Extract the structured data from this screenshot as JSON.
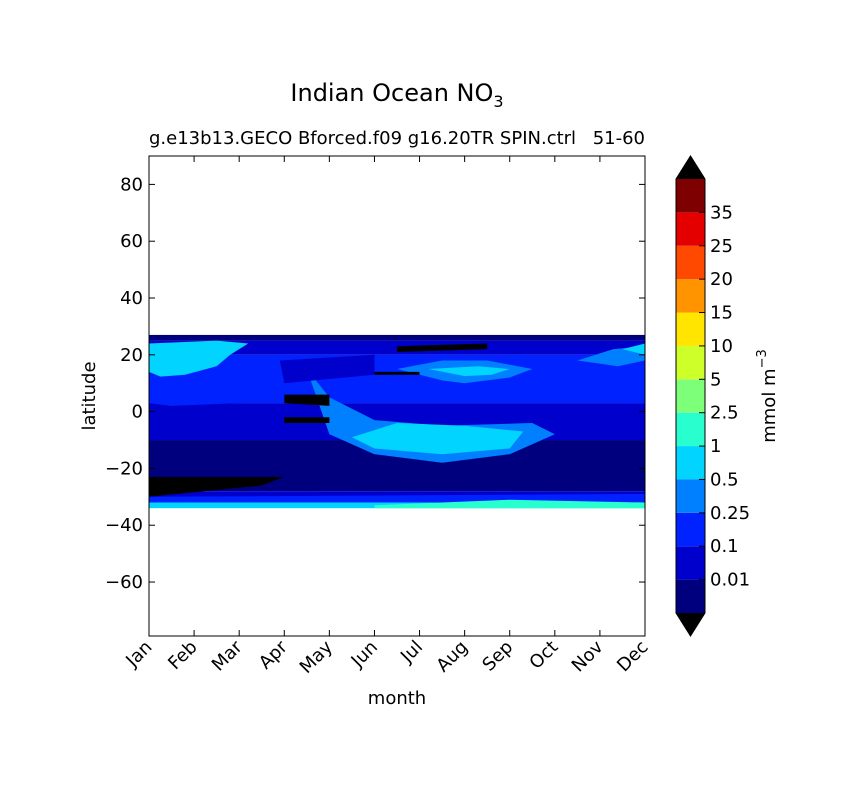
{
  "chart_data": {
    "type": "heatmap",
    "title": "Indian Ocean NO",
    "title_subscript": "3",
    "subtitle_left": "g.e13b13.GECO Bforced.f09 g16.20TR SPIN.ctrl",
    "subtitle_right": "51-60",
    "xlabel": "month",
    "ylabel": "latitude",
    "x_categories": [
      "Jan",
      "Feb",
      "Mar",
      "Apr",
      "May",
      "Jun",
      "Jul",
      "Aug",
      "Sep",
      "Oct",
      "Nov",
      "Dec"
    ],
    "xlim": [
      0,
      11
    ],
    "ylim": [
      -79,
      90
    ],
    "yticks": [
      80,
      60,
      40,
      20,
      0,
      -20,
      -40,
      -60
    ],
    "ytick_labels": [
      "80",
      "60",
      "40",
      "20",
      "0",
      "−20",
      "−40",
      "−60"
    ],
    "data_lat_range": [
      -34,
      27
    ],
    "colorbar": {
      "label": "mmol m",
      "label_superscript": "−3",
      "tick_labels": [
        "0.01",
        "0.1",
        "0.25",
        "0.5",
        "1",
        "2.5",
        "5",
        "10",
        "15",
        "20",
        "25",
        "35"
      ],
      "under_color": "#000000",
      "over_color": "#000000",
      "colors": [
        "#00007f",
        "#0000cc",
        "#0022ff",
        "#0080ff",
        "#00d4ff",
        "#29ffce",
        "#7dff7a",
        "#ceff29",
        "#ffe500",
        "#ff9400",
        "#ff4800",
        "#e50000",
        "#7f0000"
      ]
    },
    "field_bands": [
      {
        "lat_from": 25,
        "lat_to": 27,
        "level": 0
      },
      {
        "lat_from": 20,
        "lat_to": 25,
        "level": 1
      },
      {
        "lat_from": 3,
        "lat_to": 20,
        "level": 2
      },
      {
        "lat_from": -10,
        "lat_to": 3,
        "level": 1
      },
      {
        "lat_from": -28,
        "lat_to": -10,
        "level": 0
      },
      {
        "lat_from": -32,
        "lat_to": -28,
        "level": 1
      },
      {
        "lat_from": -34,
        "lat_to": -32,
        "level": 4
      }
    ],
    "field_patches": [
      {
        "points": [
          [
            0,
            24
          ],
          [
            1.5,
            25
          ],
          [
            2.2,
            24
          ],
          [
            1.8,
            20
          ],
          [
            1.5,
            16
          ],
          [
            0.8,
            13
          ],
          [
            0,
            12
          ]
        ],
        "level": 4
      },
      {
        "points": [
          [
            0,
            14
          ],
          [
            0.6,
            10
          ],
          [
            1.5,
            9
          ],
          [
            2.5,
            10
          ],
          [
            2.6,
            6
          ],
          [
            2,
            3
          ],
          [
            0.5,
            2
          ],
          [
            0,
            3
          ]
        ],
        "level": 2
      },
      {
        "points": [
          [
            5.5,
            15
          ],
          [
            6.5,
            11
          ],
          [
            7,
            10
          ],
          [
            8,
            12
          ],
          [
            8.5,
            15
          ],
          [
            7.5,
            18
          ],
          [
            6.5,
            18
          ]
        ],
        "level": 3
      },
      {
        "points": [
          [
            6.2,
            15
          ],
          [
            7,
            12.5
          ],
          [
            7.6,
            13
          ],
          [
            8,
            15
          ],
          [
            7.3,
            16
          ]
        ],
        "level": 4
      },
      {
        "points": [
          [
            3.5,
            15
          ],
          [
            4,
            5
          ],
          [
            5,
            -3
          ],
          [
            6.5,
            -5
          ],
          [
            8.5,
            -4
          ],
          [
            9,
            -8
          ],
          [
            8,
            -15
          ],
          [
            6.5,
            -18
          ],
          [
            5,
            -15
          ],
          [
            4,
            -8
          ]
        ],
        "level": 3
      },
      {
        "points": [
          [
            4.5,
            -9
          ],
          [
            5.5,
            -4
          ],
          [
            7,
            -5
          ],
          [
            8.3,
            -7
          ],
          [
            8,
            -13
          ],
          [
            6.5,
            -15
          ],
          [
            5,
            -13
          ]
        ],
        "level": 4
      },
      {
        "points": [
          [
            9.5,
            18
          ],
          [
            10.3,
            22
          ],
          [
            11,
            23
          ],
          [
            11,
            18
          ],
          [
            10.4,
            16
          ]
        ],
        "level": 3
      },
      {
        "points": [
          [
            10.5,
            22
          ],
          [
            11,
            24
          ],
          [
            11,
            20
          ]
        ],
        "level": 4
      },
      {
        "points": [
          [
            2.9,
            18
          ],
          [
            5,
            20
          ],
          [
            5,
            13
          ],
          [
            3,
            10
          ]
        ],
        "level": 1
      },
      {
        "points": [
          [
            3,
            6
          ],
          [
            4,
            6
          ],
          [
            4,
            2
          ],
          [
            3,
            3
          ]
        ],
        "level": -1
      },
      {
        "points": [
          [
            3,
            -2
          ],
          [
            4,
            -2
          ],
          [
            4,
            -4
          ],
          [
            3,
            -4
          ]
        ],
        "level": -1
      },
      {
        "points": [
          [
            0,
            -23
          ],
          [
            3,
            -23
          ],
          [
            2.5,
            -26
          ],
          [
            0,
            -30
          ]
        ],
        "level": -1
      },
      {
        "points": [
          [
            5,
            14
          ],
          [
            6,
            14
          ],
          [
            6,
            13
          ],
          [
            5,
            13
          ]
        ],
        "level": -1
      },
      {
        "points": [
          [
            5.5,
            23
          ],
          [
            7.5,
            24
          ],
          [
            7.5,
            22
          ],
          [
            5.5,
            21
          ]
        ],
        "level": -1
      },
      {
        "points": [
          [
            0,
            -30
          ],
          [
            11,
            -29
          ],
          [
            11,
            -32
          ],
          [
            0,
            -32
          ]
        ],
        "level": 2
      },
      {
        "points": [
          [
            5,
            -33
          ],
          [
            8,
            -31
          ],
          [
            11,
            -32
          ],
          [
            11,
            -34
          ],
          [
            5,
            -34
          ]
        ],
        "level": 5
      }
    ]
  }
}
